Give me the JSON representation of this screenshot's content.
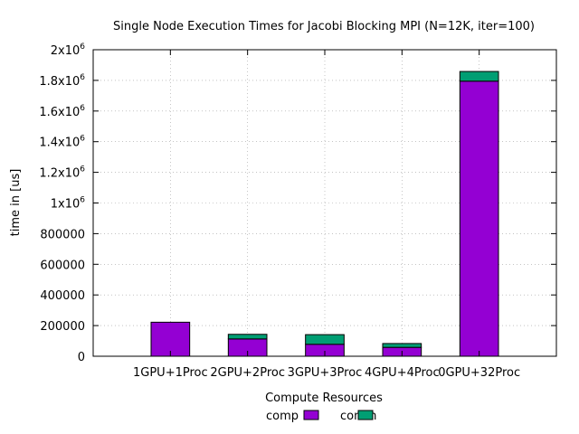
{
  "chart_data": {
    "type": "bar",
    "stacked": true,
    "title": "Single Node Execution Times for Jacobi Blocking MPI  (N=12K, iter=100)",
    "xlabel": "Compute Resources",
    "ylabel": "time in [us]",
    "ylim": [
      0,
      2000000
    ],
    "yticks": [
      {
        "value": 0,
        "label": "0"
      },
      {
        "value": 200000,
        "label": "200000"
      },
      {
        "value": 400000,
        "label": "400000"
      },
      {
        "value": 600000,
        "label": "600000"
      },
      {
        "value": 800000,
        "label": "800000"
      },
      {
        "value": 1000000,
        "mantissa": "1x10",
        "exp": "6"
      },
      {
        "value": 1200000,
        "mantissa": "1.2x10",
        "exp": "6"
      },
      {
        "value": 1400000,
        "mantissa": "1.4x10",
        "exp": "6"
      },
      {
        "value": 1600000,
        "mantissa": "1.6x10",
        "exp": "6"
      },
      {
        "value": 1800000,
        "mantissa": "1.8x10",
        "exp": "6"
      },
      {
        "value": 2000000,
        "mantissa": "2x10",
        "exp": "6"
      }
    ],
    "grid": true,
    "legend_position": "bottom",
    "categories": [
      "1GPU+1Proc",
      "2GPU+2Proc",
      "3GPU+3Proc",
      "4GPU+4Proc",
      "0GPU+32Proc"
    ],
    "series": [
      {
        "name": "comp",
        "color": "#9400d3",
        "values": [
          222000,
          113000,
          78000,
          58000,
          1795000
        ]
      },
      {
        "name": "comm",
        "color": "#009e73",
        "values": [
          0,
          30000,
          63000,
          25000,
          63000
        ]
      }
    ]
  }
}
